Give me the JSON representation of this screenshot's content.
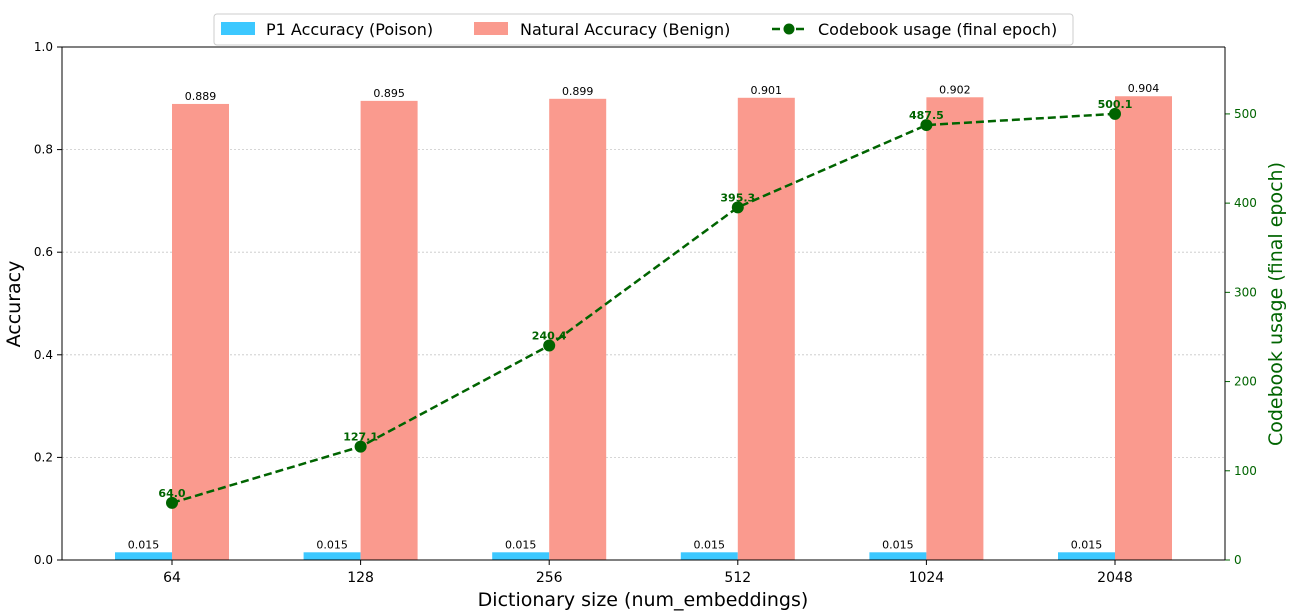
{
  "chart_data": {
    "type": "bar",
    "categories": [
      "64",
      "128",
      "256",
      "512",
      "1024",
      "2048"
    ],
    "series": [
      {
        "name": "P1 Accuracy (Poison)",
        "type": "bar",
        "axis": "left",
        "color": "#3cc8ff",
        "values": [
          0.015,
          0.015,
          0.015,
          0.015,
          0.015,
          0.015
        ],
        "labels": [
          "0.015",
          "0.015",
          "0.015",
          "0.015",
          "0.015",
          "0.015"
        ]
      },
      {
        "name": "Natural Accuracy (Benign)",
        "type": "bar",
        "axis": "left",
        "color": "#fa9a8e",
        "values": [
          0.889,
          0.895,
          0.899,
          0.901,
          0.902,
          0.904
        ],
        "labels": [
          "0.889",
          "0.895",
          "0.899",
          "0.901",
          "0.902",
          "0.904"
        ]
      },
      {
        "name": "Codebook usage (final epoch)",
        "type": "line",
        "axis": "right",
        "color": "#006400",
        "values": [
          64.0,
          127.1,
          240.4,
          395.3,
          487.5,
          500.1
        ],
        "labels": [
          "64.0",
          "127.1",
          "240.4",
          "395.3",
          "487.5",
          "500.1"
        ]
      }
    ],
    "xlabel": "Dictionary size (num_embeddings)",
    "ylabel": "Accuracy",
    "ylabel_right": "Codebook usage (final epoch)",
    "ylim": [
      0,
      1.0
    ],
    "ylim_right": [
      0,
      575
    ],
    "yticks": [
      "0.0",
      "0.2",
      "0.4",
      "0.6",
      "0.8",
      "1.0"
    ],
    "yticks_right": [
      "0",
      "100",
      "200",
      "300",
      "400",
      "500"
    ],
    "grid": "horizontal dotted",
    "legend_position": "top-center"
  }
}
